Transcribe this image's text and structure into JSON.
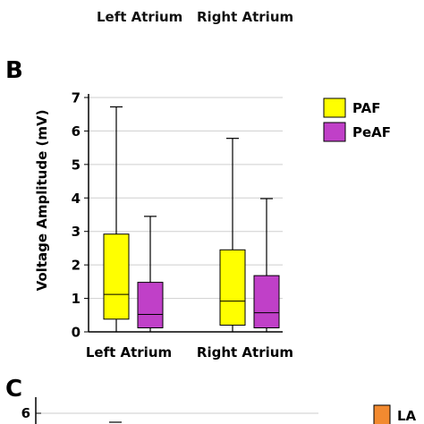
{
  "top_fragment": {
    "categories": [
      "Left Atrium",
      "Right Atrium"
    ]
  },
  "panel_b": {
    "letter": "B"
  },
  "panel_c": {
    "letter": "C",
    "y_tick_top": "6",
    "legend_label": "LA",
    "legend_color": "#f28a30"
  },
  "chart_data": {
    "type": "box",
    "ylabel": "Voltage Amplitude (mV)",
    "xlabel": "",
    "ylim": [
      0,
      7
    ],
    "yticks": [
      0,
      1,
      2,
      3,
      4,
      5,
      6,
      7
    ],
    "grid": "horizontal",
    "legend_position": "top-right",
    "categories": [
      "Left Atrium",
      "Right Atrium"
    ],
    "series": [
      {
        "name": "PAF",
        "color": "#ffff00",
        "boxes": [
          {
            "category": "Left Atrium",
            "min": 0.0,
            "q1": 0.38,
            "median": 1.12,
            "q3": 2.92,
            "max": 6.72
          },
          {
            "category": "Right Atrium",
            "min": 0.0,
            "q1": 0.2,
            "median": 0.92,
            "q3": 2.45,
            "max": 5.78
          }
        ]
      },
      {
        "name": "PeAF",
        "color": "#c040c8",
        "boxes": [
          {
            "category": "Left Atrium",
            "min": 0.0,
            "q1": 0.12,
            "median": 0.52,
            "q3": 1.48,
            "max": 3.45
          },
          {
            "category": "Right Atrium",
            "min": 0.0,
            "q1": 0.12,
            "median": 0.57,
            "q3": 1.68,
            "max": 3.98
          }
        ]
      }
    ]
  }
}
